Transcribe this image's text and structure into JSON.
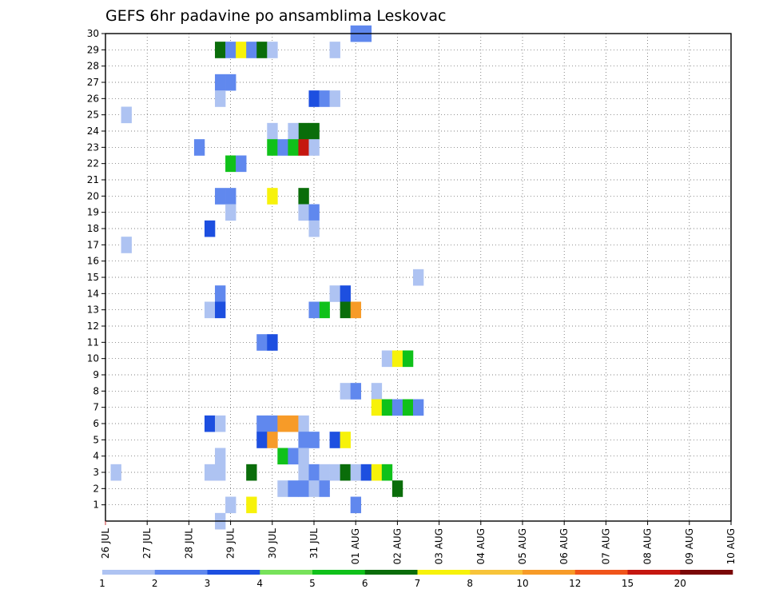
{
  "chart_data": {
    "type": "heatmap",
    "title": "GEFS 6hr padavine po ansamblima Leskovac",
    "x_tick_labels": [
      "26 JUL",
      "27 JUL",
      "28 JUL",
      "29 JUL",
      "30 JUL",
      "31 JUL",
      "01 AUG",
      "02 AUG",
      "03 AUG",
      "04 AUG",
      "05 AUG",
      "06 AUG",
      "07 AUG",
      "08 AUG",
      "09 AUG",
      "10 AUG"
    ],
    "x_unit": "6-hour steps from 26 JUL",
    "y_tick_labels": [
      1,
      2,
      3,
      4,
      5,
      6,
      7,
      8,
      9,
      10,
      11,
      12,
      13,
      14,
      15,
      16,
      17,
      18,
      19,
      20,
      21,
      22,
      23,
      24,
      25,
      26,
      27,
      28,
      29,
      30
    ],
    "ylim": [
      0,
      30
    ],
    "grid": "dotted",
    "colorbar": {
      "labels": [
        "1",
        "2",
        "3",
        "4",
        "5",
        "6",
        "7",
        "8",
        "10",
        "12",
        "15",
        "20"
      ],
      "colors": [
        "#aec3f2",
        "#6088ee",
        "#1d4fe0",
        "#77e25a",
        "#10c11a",
        "#0a6d0a",
        "#f7f20a",
        "#f7c43a",
        "#f79b28",
        "#f0541a",
        "#c51710",
        "#7a0707"
      ]
    },
    "cells": [
      {
        "member": 30,
        "step": 24,
        "v": 2
      },
      {
        "member": 30,
        "step": 25,
        "v": 2
      },
      {
        "member": 29,
        "step": 11,
        "v": 6
      },
      {
        "member": 29,
        "step": 12,
        "v": 2
      },
      {
        "member": 29,
        "step": 13,
        "v": 7
      },
      {
        "member": 29,
        "step": 14,
        "v": 2
      },
      {
        "member": 29,
        "step": 15,
        "v": 6
      },
      {
        "member": 29,
        "step": 16,
        "v": 1
      },
      {
        "member": 29,
        "step": 22,
        "v": 1
      },
      {
        "member": 27,
        "step": 11,
        "v": 2
      },
      {
        "member": 27,
        "step": 12,
        "v": 2
      },
      {
        "member": 26,
        "step": 11,
        "v": 1
      },
      {
        "member": 26,
        "step": 20,
        "v": 3
      },
      {
        "member": 26,
        "step": 21,
        "v": 2
      },
      {
        "member": 26,
        "step": 22,
        "v": 1
      },
      {
        "member": 25,
        "step": 2,
        "v": 1
      },
      {
        "member": 24,
        "step": 16,
        "v": 1
      },
      {
        "member": 24,
        "step": 19,
        "v": 6
      },
      {
        "member": 24,
        "step": 20,
        "v": 6
      },
      {
        "member": 24,
        "step": 18,
        "v": 1
      },
      {
        "member": 23,
        "step": 9,
        "v": 2
      },
      {
        "member": 23,
        "step": 16,
        "v": 5
      },
      {
        "member": 23,
        "step": 17,
        "v": 2
      },
      {
        "member": 23,
        "step": 18,
        "v": 5
      },
      {
        "member": 23,
        "step": 19,
        "v": 15
      },
      {
        "member": 23,
        "step": 20,
        "v": 1
      },
      {
        "member": 22,
        "step": 12,
        "v": 5
      },
      {
        "member": 22,
        "step": 13,
        "v": 2
      },
      {
        "member": 20,
        "step": 11,
        "v": 2
      },
      {
        "member": 20,
        "step": 12,
        "v": 2
      },
      {
        "member": 20,
        "step": 16,
        "v": 7
      },
      {
        "member": 20,
        "step": 19,
        "v": 6
      },
      {
        "member": 19,
        "step": 12,
        "v": 1
      },
      {
        "member": 19,
        "step": 19,
        "v": 1
      },
      {
        "member": 19,
        "step": 20,
        "v": 2
      },
      {
        "member": 18,
        "step": 10,
        "v": 3
      },
      {
        "member": 18,
        "step": 20,
        "v": 1
      },
      {
        "member": 17,
        "step": 2,
        "v": 1
      },
      {
        "member": 15,
        "step": 30,
        "v": 1
      },
      {
        "member": 14,
        "step": 11,
        "v": 2
      },
      {
        "member": 14,
        "step": 22,
        "v": 1
      },
      {
        "member": 14,
        "step": 23,
        "v": 3
      },
      {
        "member": 13,
        "step": 10,
        "v": 1
      },
      {
        "member": 13,
        "step": 11,
        "v": 3
      },
      {
        "member": 13,
        "step": 21,
        "v": 5
      },
      {
        "member": 13,
        "step": 23,
        "v": 6
      },
      {
        "member": 13,
        "step": 24,
        "v": 10
      },
      {
        "member": 13,
        "step": 20,
        "v": 2
      },
      {
        "member": 11,
        "step": 15,
        "v": 2
      },
      {
        "member": 11,
        "step": 16,
        "v": 3
      },
      {
        "member": 10,
        "step": 27,
        "v": 1
      },
      {
        "member": 10,
        "step": 28,
        "v": 7
      },
      {
        "member": 10,
        "step": 29,
        "v": 5
      },
      {
        "member": 8,
        "step": 23,
        "v": 1
      },
      {
        "member": 8,
        "step": 24,
        "v": 2
      },
      {
        "member": 8,
        "step": 26,
        "v": 1
      },
      {
        "member": 7,
        "step": 26,
        "v": 7
      },
      {
        "member": 7,
        "step": 27,
        "v": 5
      },
      {
        "member": 7,
        "step": 28,
        "v": 2
      },
      {
        "member": 7,
        "step": 29,
        "v": 5
      },
      {
        "member": 7,
        "step": 30,
        "v": 2
      },
      {
        "member": 6,
        "step": 10,
        "v": 3
      },
      {
        "member": 6,
        "step": 11,
        "v": 1
      },
      {
        "member": 6,
        "step": 15,
        "v": 2
      },
      {
        "member": 6,
        "step": 16,
        "v": 2
      },
      {
        "member": 6,
        "step": 17,
        "v": 10
      },
      {
        "member": 6,
        "step": 18,
        "v": 10
      },
      {
        "member": 6,
        "step": 19,
        "v": 1
      },
      {
        "member": 5,
        "step": 15,
        "v": 3
      },
      {
        "member": 5,
        "step": 16,
        "v": 10
      },
      {
        "member": 5,
        "step": 20,
        "v": 2
      },
      {
        "member": 5,
        "step": 22,
        "v": 3
      },
      {
        "member": 5,
        "step": 23,
        "v": 7
      },
      {
        "member": 5,
        "step": 19,
        "v": 2
      },
      {
        "member": 4,
        "step": 11,
        "v": 1
      },
      {
        "member": 4,
        "step": 17,
        "v": 5
      },
      {
        "member": 4,
        "step": 18,
        "v": 2
      },
      {
        "member": 4,
        "step": 19,
        "v": 1
      },
      {
        "member": 3,
        "step": 1,
        "v": 1
      },
      {
        "member": 3,
        "step": 10,
        "v": 1
      },
      {
        "member": 3,
        "step": 11,
        "v": 1
      },
      {
        "member": 3,
        "step": 14,
        "v": 6
      },
      {
        "member": 3,
        "step": 19,
        "v": 1
      },
      {
        "member": 3,
        "step": 20,
        "v": 2
      },
      {
        "member": 3,
        "step": 21,
        "v": 1
      },
      {
        "member": 3,
        "step": 22,
        "v": 1
      },
      {
        "member": 3,
        "step": 23,
        "v": 6
      },
      {
        "member": 3,
        "step": 24,
        "v": 1
      },
      {
        "member": 3,
        "step": 25,
        "v": 3
      },
      {
        "member": 3,
        "step": 26,
        "v": 7
      },
      {
        "member": 3,
        "step": 27,
        "v": 5
      },
      {
        "member": 2,
        "step": 17,
        "v": 1
      },
      {
        "member": 2,
        "step": 18,
        "v": 2
      },
      {
        "member": 2,
        "step": 19,
        "v": 2
      },
      {
        "member": 2,
        "step": 20,
        "v": 1
      },
      {
        "member": 2,
        "step": 21,
        "v": 2
      },
      {
        "member": 2,
        "step": 28,
        "v": 6
      },
      {
        "member": 1,
        "step": 12,
        "v": 1
      },
      {
        "member": 1,
        "step": 14,
        "v": 7
      },
      {
        "member": 1,
        "step": 24,
        "v": 2
      },
      {
        "member": 0,
        "step": 11,
        "v": 1
      }
    ]
  }
}
